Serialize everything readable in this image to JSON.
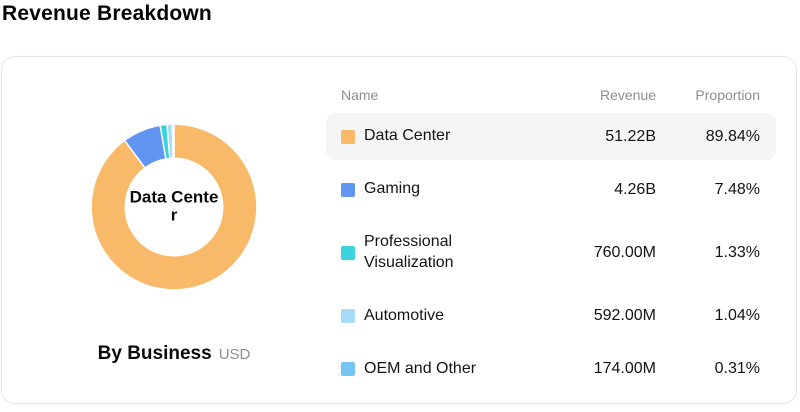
{
  "page_title": "Revenue Breakdown",
  "caption": {
    "title": "By Business",
    "unit": "USD"
  },
  "table": {
    "headers": {
      "name": "Name",
      "revenue": "Revenue",
      "proportion": "Proportion"
    },
    "rows": [
      {
        "name": "Data Center",
        "revenue": "51.22B",
        "proportion": "89.84%",
        "color": "#F8BA69",
        "highlighted": true
      },
      {
        "name": "Gaming",
        "revenue": "4.26B",
        "proportion": "7.48%",
        "color": "#6095F2",
        "highlighted": false
      },
      {
        "name": "Professional Visualization",
        "revenue": "760.00M",
        "proportion": "1.33%",
        "color": "#3BD3DD",
        "highlighted": false
      },
      {
        "name": "Automotive",
        "revenue": "592.00M",
        "proportion": "1.04%",
        "color": "#A6DBF8",
        "highlighted": false
      },
      {
        "name": "OEM and Other",
        "revenue": "174.00M",
        "proportion": "0.31%",
        "color": "#74C5F3",
        "highlighted": false
      }
    ]
  },
  "chart_data": {
    "type": "pie",
    "donut": true,
    "title": "By Business",
    "unit": "USD",
    "center_label": "Data Center",
    "categories": [
      "Data Center",
      "Gaming",
      "Professional Visualization",
      "Automotive",
      "OEM and Other"
    ],
    "values_percent": [
      89.84,
      7.48,
      1.33,
      1.04,
      0.31
    ],
    "values_revenue": [
      "51.22B",
      "4.26B",
      "760.00M",
      "592.00M",
      "174.00M"
    ],
    "colors": [
      "#F8BA69",
      "#6095F2",
      "#3BD3DD",
      "#A6DBF8",
      "#74C5F3"
    ],
    "legend_position": "right-table",
    "slice_gap_color": "#ffffff"
  },
  "colors": {
    "row_highlight": "#f5f5f7",
    "card_border": "#e6e5ef",
    "muted_text": "#8e8e93"
  }
}
